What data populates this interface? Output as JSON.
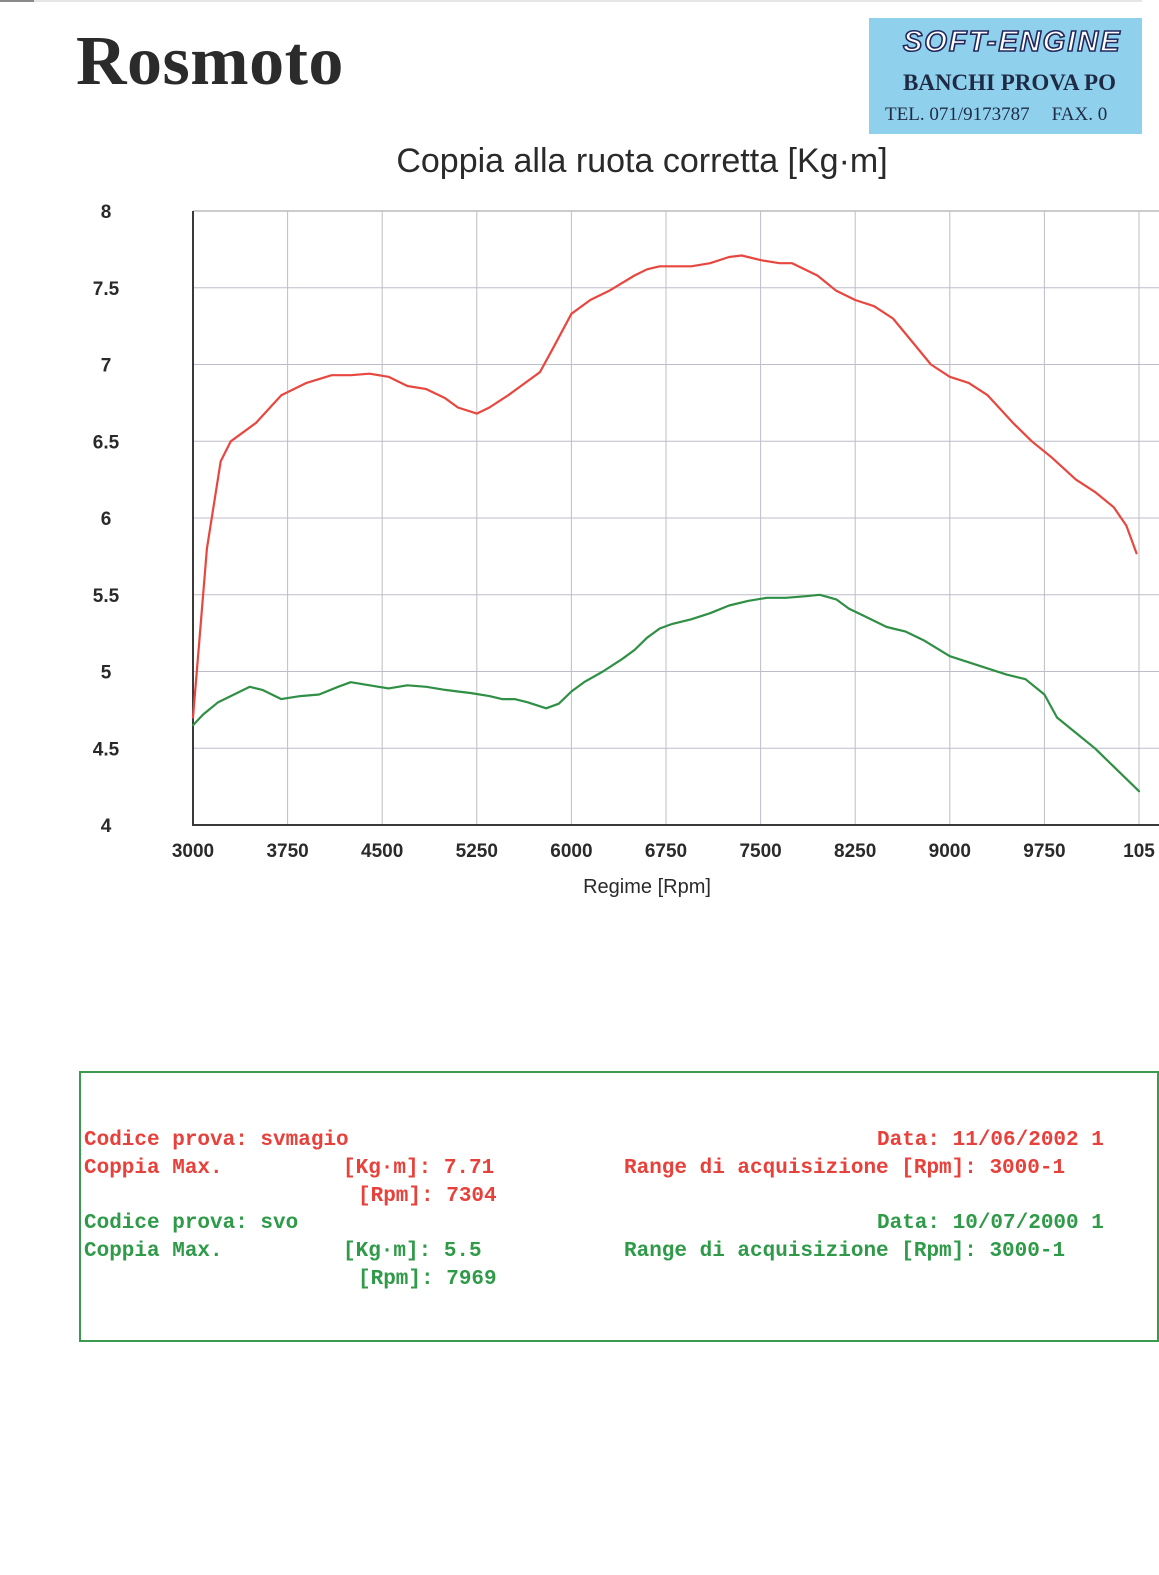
{
  "header": {
    "brand": "Rosmoto",
    "stamp": {
      "logo_text": "SOFT-ENGINE",
      "line1": "BANCHI PROVA PO",
      "tel": "TEL. 071/9173787",
      "fax": "FAX. 0"
    }
  },
  "chart_data": {
    "type": "line",
    "title": "Coppia alla ruota corretta [Kg·m]",
    "xlabel": "Regime [Rpm]",
    "ylabel": "",
    "xlim": [
      3000,
      10500
    ],
    "ylim": [
      4,
      8
    ],
    "x_ticks": [
      "3000",
      "3750",
      "4500",
      "5250",
      "6000",
      "6750",
      "7500",
      "8250",
      "9000",
      "9750",
      "105"
    ],
    "y_ticks": [
      "8",
      "7.5",
      "7",
      "6.5",
      "6",
      "5.5",
      "5",
      "4.5",
      "4"
    ],
    "grid": true,
    "series": [
      {
        "color": "#e8473f",
        "x": [
          3000,
          3060,
          3110,
          3220,
          3300,
          3500,
          3700,
          3900,
          4100,
          4250,
          4400,
          4550,
          4700,
          4850,
          5000,
          5100,
          5250,
          5350,
          5500,
          5600,
          5750,
          5850,
          6000,
          6150,
          6300,
          6500,
          6600,
          6700,
          6800,
          6950,
          7100,
          7250,
          7350,
          7500,
          7650,
          7750,
          7950,
          8100,
          8250,
          8400,
          8550,
          8700,
          8850,
          9000,
          9150,
          9300,
          9500,
          9650,
          9800,
          10000,
          10150,
          10300,
          10400,
          10480
        ],
        "y": [
          4.7,
          5.3,
          5.8,
          6.37,
          6.5,
          6.62,
          6.8,
          6.88,
          6.93,
          6.93,
          6.94,
          6.92,
          6.86,
          6.84,
          6.78,
          6.72,
          6.68,
          6.72,
          6.8,
          6.86,
          6.95,
          7.1,
          7.33,
          7.42,
          7.48,
          7.58,
          7.62,
          7.64,
          7.64,
          7.64,
          7.66,
          7.7,
          7.71,
          7.68,
          7.66,
          7.66,
          7.58,
          7.48,
          7.42,
          7.38,
          7.3,
          7.15,
          7.0,
          6.92,
          6.88,
          6.8,
          6.62,
          6.5,
          6.4,
          6.25,
          6.17,
          6.07,
          5.95,
          5.77
        ]
      },
      {
        "color": "#2f8f44",
        "x": [
          3000,
          3080,
          3200,
          3350,
          3450,
          3550,
          3700,
          3850,
          4000,
          4150,
          4250,
          4400,
          4550,
          4700,
          4850,
          5000,
          5100,
          5200,
          5350,
          5450,
          5550,
          5650,
          5800,
          5900,
          6000,
          6100,
          6250,
          6400,
          6500,
          6600,
          6700,
          6800,
          6950,
          7100,
          7250,
          7400,
          7550,
          7700,
          7850,
          7969,
          8100,
          8200,
          8350,
          8500,
          8650,
          8800,
          9000,
          9150,
          9300,
          9450,
          9600,
          9750,
          9850,
          10000,
          10150,
          10300,
          10500
        ],
        "y": [
          4.65,
          4.72,
          4.8,
          4.86,
          4.9,
          4.88,
          4.82,
          4.84,
          4.85,
          4.9,
          4.93,
          4.91,
          4.89,
          4.91,
          4.9,
          4.88,
          4.87,
          4.86,
          4.84,
          4.82,
          4.82,
          4.8,
          4.76,
          4.79,
          4.87,
          4.93,
          5.0,
          5.08,
          5.14,
          5.22,
          5.28,
          5.31,
          5.34,
          5.38,
          5.43,
          5.46,
          5.48,
          5.48,
          5.49,
          5.5,
          5.47,
          5.41,
          5.35,
          5.29,
          5.26,
          5.2,
          5.1,
          5.06,
          5.02,
          4.98,
          4.95,
          4.85,
          4.7,
          4.6,
          4.5,
          4.38,
          4.22
        ]
      }
    ]
  },
  "info": {
    "red": {
      "codice": "Codice prova: svmagio",
      "coppia_label": "Coppia Max.",
      "kgm": "[Kg·m]: 7.71",
      "rpm": "[Rpm]: 7304",
      "data": "Data: 11/06/2002 1",
      "range": "Range di acquisizione [Rpm]: 3000-1"
    },
    "green": {
      "codice": "Codice prova: svo",
      "coppia_label": "Coppia Max.",
      "kgm": "[Kg·m]: 5.5",
      "rpm": "[Rpm]: 7969",
      "data": "Data: 10/07/2000 1",
      "range": "Range di acquisizione [Rpm]: 3000-1"
    }
  }
}
